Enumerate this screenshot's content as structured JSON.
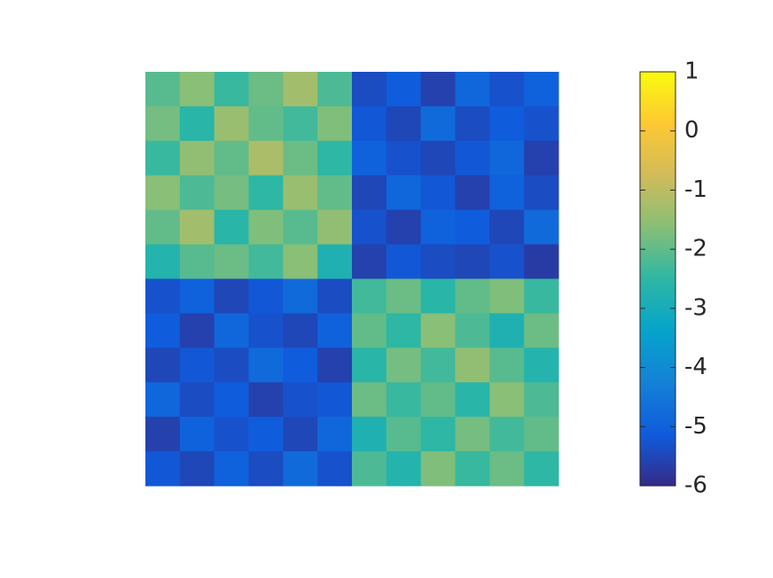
{
  "chart_data": {
    "type": "heatmap",
    "z": [
      [
        -2.1,
        -1.6,
        -2.4,
        -1.9,
        -1.3,
        -2.2,
        -5.4,
        -5.1,
        -5.6,
        -4.9,
        -5.3,
        -5.0
      ],
      [
        -1.8,
        -2.6,
        -1.4,
        -2.0,
        -2.3,
        -1.7,
        -5.2,
        -5.5,
        -4.8,
        -5.4,
        -5.1,
        -5.3
      ],
      [
        -2.4,
        -1.5,
        -2.0,
        -1.2,
        -1.9,
        -2.5,
        -5.0,
        -5.3,
        -5.5,
        -5.2,
        -4.9,
        -5.6
      ],
      [
        -1.6,
        -2.2,
        -1.8,
        -2.5,
        -1.4,
        -2.0,
        -5.5,
        -4.9,
        -5.2,
        -5.6,
        -5.0,
        -5.4
      ],
      [
        -2.0,
        -1.3,
        -2.6,
        -1.7,
        -2.1,
        -1.5,
        -5.3,
        -5.6,
        -5.0,
        -5.1,
        -5.5,
        -4.8
      ],
      [
        -2.7,
        -2.1,
        -1.9,
        -2.3,
        -1.6,
        -2.8,
        -5.6,
        -5.2,
        -5.4,
        -5.5,
        -5.3,
        -5.7
      ],
      [
        -5.3,
        -5.0,
        -5.5,
        -5.2,
        -4.8,
        -5.4,
        -2.3,
        -1.9,
        -2.6,
        -2.0,
        -1.7,
        -2.4
      ],
      [
        -5.1,
        -5.6,
        -4.9,
        -5.3,
        -5.5,
        -5.0,
        -2.0,
        -2.5,
        -1.6,
        -2.2,
        -2.8,
        -1.9
      ],
      [
        -5.5,
        -5.2,
        -5.4,
        -4.8,
        -5.1,
        -5.6,
        -2.6,
        -1.8,
        -2.3,
        -1.5,
        -2.1,
        -2.7
      ],
      [
        -4.9,
        -5.4,
        -5.1,
        -5.6,
        -5.3,
        -5.2,
        -1.9,
        -2.4,
        -2.0,
        -2.6,
        -1.6,
        -2.2
      ],
      [
        -5.6,
        -5.0,
        -5.3,
        -5.1,
        -5.5,
        -4.9,
        -2.8,
        -2.1,
        -2.5,
        -1.8,
        -2.3,
        -2.0
      ],
      [
        -5.2,
        -5.5,
        -5.0,
        -5.4,
        -4.8,
        -5.3,
        -2.2,
        -2.7,
        -1.7,
        -2.4,
        -1.9,
        -2.5
      ]
    ],
    "clim": [
      -6,
      1
    ],
    "cticks": [
      -6,
      -5,
      -4,
      -3,
      -2,
      -1,
      0,
      1
    ],
    "colormap": [
      "#352a87",
      "#0f5cdd",
      "#1481d6",
      "#06a4ca",
      "#2eb7a4",
      "#87bf77",
      "#d1bb59",
      "#fec832",
      "#f9fb0e"
    ]
  }
}
